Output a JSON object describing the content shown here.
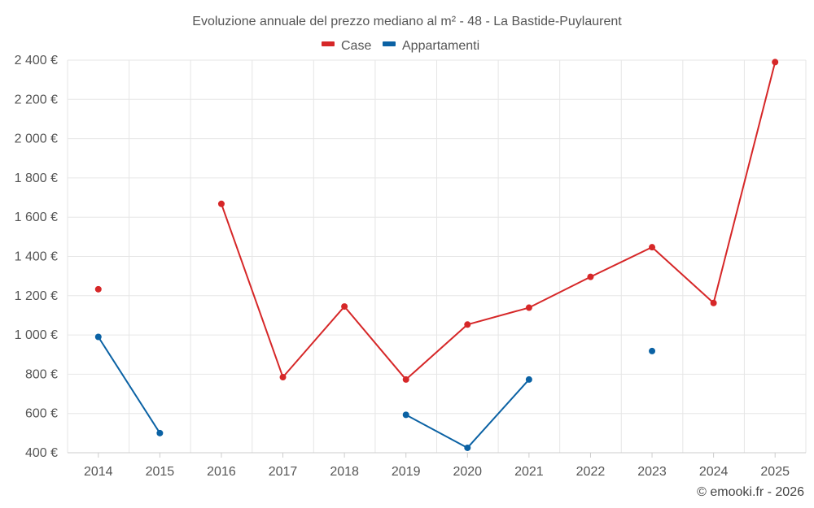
{
  "chart_data": {
    "type": "line",
    "title": "Evoluzione annuale del prezzo mediano al m² - 48 - La Bastide-Puylaurent",
    "categories": [
      "2014",
      "2015",
      "2016",
      "2017",
      "2018",
      "2019",
      "2020",
      "2021",
      "2022",
      "2023",
      "2024",
      "2025"
    ],
    "y_ticks": [
      "400 €",
      "600 €",
      "800 €",
      "1 000 €",
      "1 200 €",
      "1 400 €",
      "1 600 €",
      "1 800 €",
      "2 000 €",
      "2 200 €",
      "2 400 €"
    ],
    "ylim": [
      400,
      2400
    ],
    "y_tick_values": [
      400,
      600,
      800,
      1000,
      1200,
      1400,
      1600,
      1800,
      2000,
      2200,
      2400
    ],
    "grid": true,
    "legend_position": "top-center",
    "series": [
      {
        "name": "Case",
        "color": "#d62728",
        "values": [
          1233,
          null,
          1668,
          785,
          1145,
          773,
          1053,
          1139,
          1296,
          1447,
          1163,
          2390
        ]
      },
      {
        "name": "Appartamenti",
        "color": "#0b62a4",
        "values": [
          990,
          500,
          null,
          null,
          null,
          593,
          425,
          773,
          null,
          918,
          null,
          null
        ]
      }
    ],
    "credit": "© emooki.fr - 2026"
  }
}
